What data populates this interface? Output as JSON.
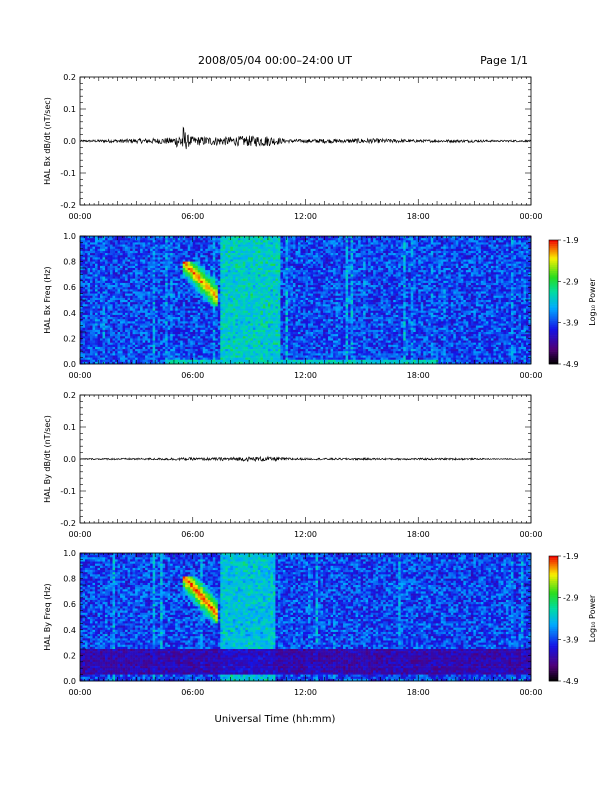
{
  "header": {
    "title": "2008/05/04  00:00–24:00 UT",
    "page": "Page 1/1"
  },
  "x_axis": {
    "label": "Universal Time (hh:mm)",
    "tick_labels": [
      "00:00",
      "06:00",
      "12:00",
      "18:00",
      "00:00"
    ],
    "range_hours": [
      0,
      24
    ]
  },
  "colorbar": {
    "label": "Log₁₀ Power",
    "tick_labels": [
      "-1.9",
      "-2.9",
      "-3.9",
      "-4.9"
    ],
    "range": [
      -4.9,
      -1.9
    ]
  },
  "chart_data": [
    {
      "type": "line",
      "panel": "Bx timeseries",
      "ylabel": "HAL Bx dB/dt (nT/sec)",
      "ylim": [
        -0.2,
        0.2
      ],
      "y_tick_labels": [
        "0.2",
        "0.1",
        "0.0",
        "-0.1",
        "-0.2"
      ],
      "x_hours": [
        0,
        1,
        2,
        3,
        4,
        5,
        5.3,
        5.5,
        5.7,
        6,
        7,
        8,
        9,
        10,
        10.5,
        11,
        12,
        13,
        14,
        15,
        16,
        17,
        18,
        19,
        20,
        21,
        22,
        23,
        24
      ],
      "amplitude": [
        0.002,
        0.003,
        0.004,
        0.005,
        0.006,
        0.008,
        0.02,
        0.035,
        0.015,
        0.01,
        0.01,
        0.01,
        0.012,
        0.012,
        0.008,
        0.004,
        0.004,
        0.005,
        0.004,
        0.006,
        0.005,
        0.004,
        0.003,
        0.003,
        0.003,
        0.003,
        0.002,
        0.002,
        0.002
      ]
    },
    {
      "type": "heatmap",
      "panel": "Bx spectrogram",
      "ylabel": "HAL Bx Freq (Hz)",
      "ylim": [
        0,
        1.0
      ],
      "y_tick_labels": [
        "1.0",
        "0.8",
        "0.6",
        "0.4",
        "0.2",
        "0.0"
      ],
      "features": [
        {
          "name": "high-frequency burst",
          "x_hours": [
            5.5,
            7.3
          ],
          "freq_hz": [
            0.45,
            0.8
          ],
          "log_power": -2.1
        },
        {
          "name": "broadband enhancement",
          "x_hours": [
            7.5,
            10.6
          ],
          "freq_hz": [
            0.0,
            1.0
          ],
          "log_power": -3.2
        },
        {
          "name": "low-frequency band",
          "x_hours": [
            4.5,
            19
          ],
          "freq_hz": [
            0.0,
            0.04
          ],
          "log_power": -3.3
        }
      ],
      "background_log_power": -3.9
    },
    {
      "type": "line",
      "panel": "By timeseries",
      "ylabel": "HAL By dB/dt (nT/sec)",
      "ylim": [
        -0.2,
        0.2
      ],
      "y_tick_labels": [
        "0.2",
        "0.1",
        "0.0",
        "-0.1",
        "-0.2"
      ],
      "x_hours": [
        0,
        2,
        4,
        5,
        6,
        7,
        8,
        9,
        10,
        11,
        12,
        14,
        16,
        18,
        20,
        22,
        24
      ],
      "amplitude": [
        0.001,
        0.002,
        0.002,
        0.003,
        0.003,
        0.003,
        0.004,
        0.005,
        0.005,
        0.003,
        0.002,
        0.002,
        0.002,
        0.002,
        0.002,
        0.001,
        0.001
      ]
    },
    {
      "type": "heatmap",
      "panel": "By spectrogram",
      "ylabel": "HAL By Freq (Hz)",
      "ylim": [
        0,
        1.0
      ],
      "y_tick_labels": [
        "1.0",
        "0.8",
        "0.6",
        "0.4",
        "0.2",
        "0.0"
      ],
      "features": [
        {
          "name": "high-frequency burst",
          "x_hours": [
            5.5,
            7.3
          ],
          "freq_hz": [
            0.45,
            0.82
          ],
          "log_power": -2.0
        },
        {
          "name": "broadband enhancement",
          "x_hours": [
            7.5,
            10.4
          ],
          "freq_hz": [
            0.0,
            1.0
          ],
          "log_power": -3.3
        },
        {
          "name": "low-frequency quiet band",
          "x_hours": [
            0,
            24
          ],
          "freq_hz": [
            0.05,
            0.25
          ],
          "log_power": -4.4
        }
      ],
      "background_log_power": -3.9
    }
  ]
}
